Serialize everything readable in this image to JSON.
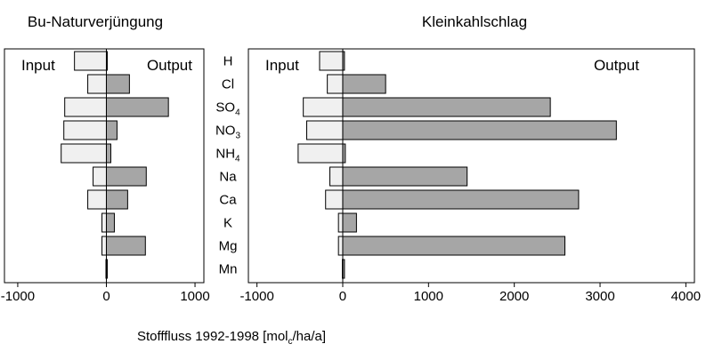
{
  "xlabel": {
    "main": "Stofffluss 1992-1998 [mol",
    "sub": "c",
    "tail": "/ha/a]"
  },
  "categories": [
    {
      "main": "H",
      "sub": ""
    },
    {
      "main": "Cl",
      "sub": ""
    },
    {
      "main": "SO",
      "sub": "4"
    },
    {
      "main": "NO",
      "sub": "3"
    },
    {
      "main": "NH",
      "sub": "4"
    },
    {
      "main": "Na",
      "sub": ""
    },
    {
      "main": "Ca",
      "sub": ""
    },
    {
      "main": "K",
      "sub": ""
    },
    {
      "main": "Mg",
      "sub": ""
    },
    {
      "main": "Mn",
      "sub": ""
    }
  ],
  "colors": {
    "input_fill": "#f0f0f0",
    "output_fill": "#a6a6a6",
    "stroke": "#000000"
  },
  "chart_data": [
    {
      "type": "bar",
      "orientation": "horizontal",
      "title": "Bu-Naturverjüngung",
      "input_label": "Input",
      "output_label": "Output",
      "xlim": [
        -1150,
        1100
      ],
      "xticks": [
        -1000,
        0,
        1000
      ],
      "xtick_labels": [
        "-1000",
        "0",
        "1000"
      ],
      "categories": [
        "H",
        "Cl",
        "SO4",
        "NO3",
        "NH4",
        "Na",
        "Ca",
        "K",
        "Mg",
        "Mn"
      ],
      "series": [
        {
          "name": "Input",
          "values": [
            -360,
            -210,
            -470,
            -480,
            -510,
            -150,
            -210,
            -50,
            -50,
            -5
          ]
        },
        {
          "name": "Output",
          "values": [
            10,
            260,
            700,
            120,
            50,
            450,
            240,
            90,
            440,
            10
          ]
        }
      ]
    },
    {
      "type": "bar",
      "orientation": "horizontal",
      "title": "Kleinkahlschlag",
      "input_label": "Input",
      "output_label": "Output",
      "xlim": [
        -1100,
        4100
      ],
      "xticks": [
        -1000,
        0,
        1000,
        2000,
        3000,
        4000
      ],
      "xtick_labels": [
        "-1000",
        "0",
        "1000",
        "2000",
        "3000",
        "4000"
      ],
      "categories": [
        "H",
        "Cl",
        "SO4",
        "NO3",
        "NH4",
        "Na",
        "Ca",
        "K",
        "Mg",
        "Mn"
      ],
      "series": [
        {
          "name": "Input",
          "values": [
            -270,
            -180,
            -460,
            -420,
            -520,
            -150,
            -200,
            -50,
            -50,
            -5
          ]
        },
        {
          "name": "Output",
          "values": [
            20,
            500,
            2420,
            3190,
            30,
            1450,
            2750,
            160,
            2590,
            20
          ]
        }
      ]
    }
  ]
}
